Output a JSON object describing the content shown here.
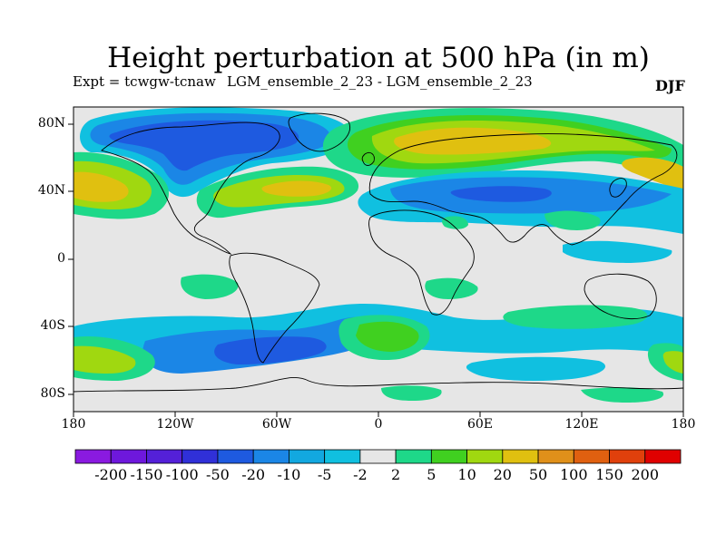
{
  "title": "Height perturbation at 500 hPa (in m)",
  "subtitle_left": "Expt = tcwgw-tcnaw",
  "subtitle_center": "LGM_ensemble_2_23 - LGM_ensemble_2_23",
  "season": "DJF",
  "lat_labels": [
    "80N",
    "40N",
    "0",
    "40S",
    "80S"
  ],
  "lon_labels": [
    "180",
    "120W",
    "60W",
    "0",
    "60E",
    "120E",
    "180"
  ],
  "colorbar": {
    "labels": [
      "-200",
      "-150",
      "-100",
      "-50",
      "-20",
      "-10",
      "-5",
      "-2",
      "2",
      "5",
      "10",
      "20",
      "50",
      "100",
      "150",
      "200"
    ],
    "colors": [
      "#8a1ae0",
      "#6e18dc",
      "#5420d8",
      "#3030d8",
      "#1e5ae0",
      "#1b86e6",
      "#12a8e0",
      "#10c0e0",
      "#e6e6e6",
      "#1ed889",
      "#40d020",
      "#a0d810",
      "#e0c010",
      "#e0901a",
      "#e06010",
      "#e0400c",
      "#e00000"
    ]
  },
  "colors": {
    "neutral": "#e6e6e6",
    "neg_dark": "#1e5ae0",
    "neg_mid": "#1b86e6",
    "neg_light": "#10c0e0",
    "pos_light": "#1ed889",
    "pos_mid": "#40d020",
    "pos_yellow": "#a0d810",
    "pos_orange": "#e0c010"
  }
}
